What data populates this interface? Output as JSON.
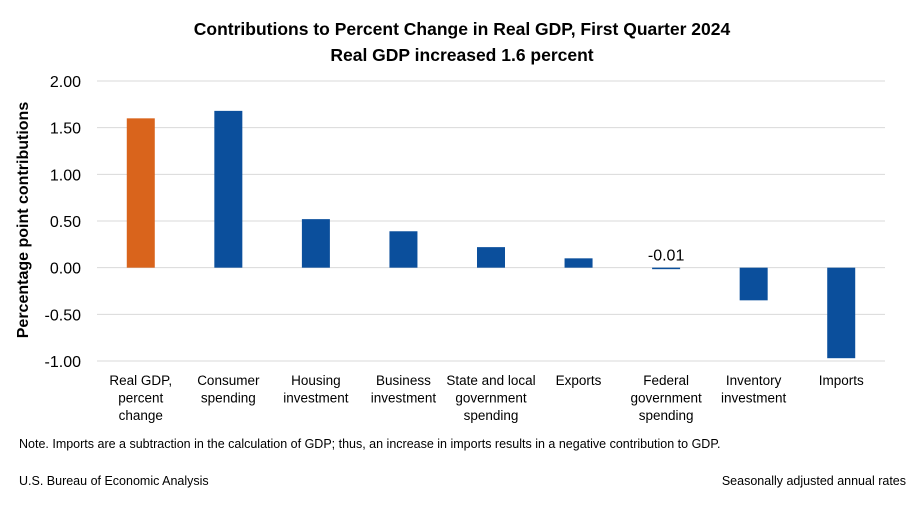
{
  "chart_data": {
    "type": "bar",
    "title": "Contributions to Percent Change in Real GDP, First Quarter 2024",
    "subtitle": "Real GDP increased 1.6 percent",
    "ylabel": "Percentage point contributions",
    "xlabel": "",
    "ylim": [
      -1.0,
      2.0
    ],
    "yticks": [
      "2.00",
      "1.50",
      "1.00",
      "0.50",
      "0.00",
      "-0.50",
      "-1.00"
    ],
    "ytick_values": [
      2.0,
      1.5,
      1.0,
      0.5,
      0.0,
      -0.5,
      -1.0
    ],
    "grid": true,
    "categories": [
      [
        "Real GDP,",
        "percent",
        "change"
      ],
      [
        "Consumer",
        "spending"
      ],
      [
        "Housing",
        "investment"
      ],
      [
        "Business",
        "investment"
      ],
      [
        "State and local",
        "government",
        "spending"
      ],
      [
        "Exports"
      ],
      [
        "Federal",
        "government",
        "spending"
      ],
      [
        "Inventory",
        "investment"
      ],
      [
        "Imports"
      ]
    ],
    "values": [
      1.6,
      1.68,
      0.52,
      0.39,
      0.22,
      0.1,
      -0.01,
      -0.35,
      -0.97
    ],
    "colors": [
      "#d9641c",
      "#0b4f9c",
      "#0b4f9c",
      "#0b4f9c",
      "#0b4f9c",
      "#0b4f9c",
      "#0b4f9c",
      "#0b4f9c",
      "#0b4f9c"
    ],
    "data_labels": [
      "",
      "",
      "",
      "",
      "",
      "",
      "-0.01",
      "",
      ""
    ]
  },
  "note": "Note. Imports are a subtraction in the calculation of GDP; thus, an increase in imports results in a negative contribution to GDP.",
  "source": "U.S. Bureau of Economic Analysis",
  "rates": "Seasonally adjusted annual rates",
  "colors": {
    "gridline": "#d9d9d9",
    "accent_orange": "#d9641c",
    "bar_blue": "#0b4f9c"
  }
}
